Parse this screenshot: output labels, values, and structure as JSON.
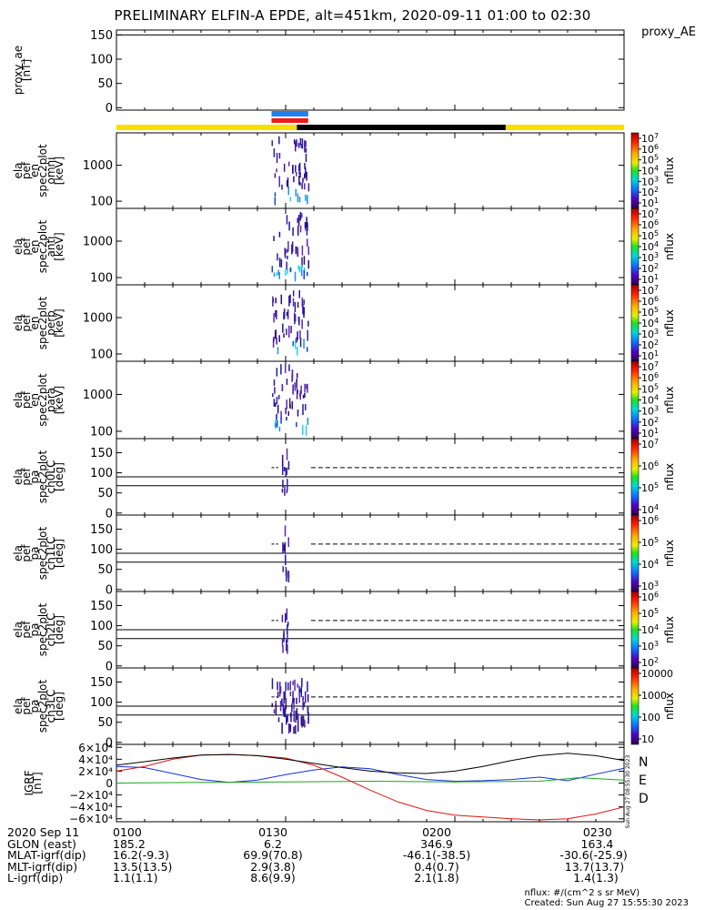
{
  "title": "PRELIMINARY ELFIN-A EPDE, alt=451km, 2020-09-11 01:00 to 02:30",
  "side_label": "proxy_AE",
  "colors": {
    "bar_yellow": "#f5e000",
    "bar_black": "#000000",
    "bar_blue": "#1e7ff0",
    "bar_red": "#ee1a1a",
    "grf_n": "#1530d8",
    "grf_e": "#1ca51c",
    "grf_d": "#e01515",
    "grf_total": "#000000"
  },
  "chart_data": [
    {
      "type": "line",
      "id": "proxy_ae",
      "ylabel": [
        "proxy_ae",
        "[nT]"
      ],
      "yticks": [
        0,
        50,
        100,
        150
      ],
      "ylim": [
        -5,
        160
      ],
      "series": [
        {
          "values": [
            150,
            150
          ]
        }
      ]
    },
    {
      "type": "heatmap",
      "id": "omni",
      "ylabel": [
        "ela",
        "pef",
        "en",
        "spec2plot",
        "omni",
        "[keV]"
      ],
      "yticks": [
        {
          "label": "100",
          "log": 2
        },
        {
          "label": "1000",
          "log": 3
        }
      ],
      "ylim_log": [
        1.8,
        3.9
      ],
      "zlabel": "nflux",
      "zticks": [
        "10^7",
        "10^6",
        "10^5",
        "10^4",
        "10^3",
        "10^2",
        "10^1"
      ]
    },
    {
      "type": "heatmap",
      "id": "anti",
      "ylabel": [
        "ela",
        "pef",
        "en",
        "spec2plot",
        "anti",
        "[keV]"
      ],
      "yticks": [
        {
          "label": "100",
          "log": 2
        },
        {
          "label": "1000",
          "log": 3
        }
      ],
      "ylim_log": [
        1.8,
        3.9
      ],
      "zlabel": "nflux",
      "zticks": [
        "10^7",
        "10^6",
        "10^5",
        "10^4",
        "10^3",
        "10^2",
        "10^1"
      ]
    },
    {
      "type": "heatmap",
      "id": "perp",
      "ylabel": [
        "ela",
        "pef",
        "en",
        "spec2plot",
        "perp",
        "[keV]"
      ],
      "yticks": [
        {
          "label": "100",
          "log": 2
        },
        {
          "label": "1000",
          "log": 3
        }
      ],
      "ylim_log": [
        1.8,
        3.9
      ],
      "zlabel": "nflux",
      "zticks": [
        "10^7",
        "10^6",
        "10^5",
        "10^4",
        "10^3",
        "10^2",
        "10^1"
      ]
    },
    {
      "type": "heatmap",
      "id": "para",
      "ylabel": [
        "ela",
        "pef",
        "en",
        "spec2plot",
        "para",
        "[keV]"
      ],
      "yticks": [
        {
          "label": "100",
          "log": 2
        },
        {
          "label": "1000",
          "log": 3
        }
      ],
      "ylim_log": [
        1.8,
        3.9
      ],
      "zlabel": "nflux",
      "zticks": [
        "10^7",
        "10^6",
        "10^5",
        "10^4",
        "10^3",
        "10^2",
        "10^1"
      ]
    },
    {
      "type": "heatmap",
      "id": "ch0LC",
      "ylabel": [
        "ela",
        "pef",
        "pa",
        "spec2plot",
        "ch0LC",
        "[deg]"
      ],
      "yticks": [
        0,
        50,
        100,
        150
      ],
      "ylim": [
        -5,
        185
      ],
      "hlines": {
        "solid": [
          90,
          68
        ],
        "dashed": 113
      },
      "zlabel": "nflux",
      "zticks": [
        "10^7",
        "10^6",
        "10^5",
        "10^4"
      ]
    },
    {
      "type": "heatmap",
      "id": "ch1LC",
      "ylabel": [
        "ela",
        "pef",
        "pa",
        "spec2plot",
        "ch1LC",
        "[deg]"
      ],
      "yticks": [
        0,
        50,
        100,
        150
      ],
      "ylim": [
        -5,
        185
      ],
      "hlines": {
        "solid": [
          90,
          68
        ],
        "dashed": 113
      },
      "zlabel": "nflux",
      "zticks": [
        "10^6",
        "10^5",
        "10^4",
        "10^3"
      ]
    },
    {
      "type": "heatmap",
      "id": "ch2LC",
      "ylabel": [
        "ela",
        "pef",
        "pa",
        "spec2plot",
        "ch2LC",
        "[deg]"
      ],
      "yticks": [
        0,
        50,
        100,
        150
      ],
      "ylim": [
        -5,
        185
      ],
      "hlines": {
        "solid": [
          90,
          68
        ],
        "dashed": 113
      },
      "zlabel": "nflux",
      "zticks": [
        "10^6",
        "10^5",
        "10^4",
        "10^3",
        "10^2"
      ]
    },
    {
      "type": "heatmap",
      "id": "ch3LC",
      "ylabel": [
        "ela",
        "pef",
        "pa",
        "spec2plot",
        "ch3LC",
        "[deg]"
      ],
      "yticks": [
        0,
        50,
        100,
        150
      ],
      "ylim": [
        -5,
        185
      ],
      "hlines": {
        "solid": [
          90,
          68
        ],
        "dashed": 113
      },
      "zlabel": "nflux",
      "zticks": [
        "10000",
        "1000",
        "100",
        "10"
      ]
    },
    {
      "type": "line",
      "id": "igrf",
      "ylabel": [
        "IGRF",
        "[nT]"
      ],
      "yticks": [
        {
          "label": "6×10⁴",
          "v": 60000
        },
        {
          "label": "4×10⁴",
          "v": 40000
        },
        {
          "label": "2×10⁴",
          "v": 20000
        },
        {
          "label": "0",
          "v": 0
        },
        {
          "label": "−2×10⁴",
          "v": -20000
        },
        {
          "label": "−4×10⁴",
          "v": -40000
        },
        {
          "label": "−6×10⁴",
          "v": -60000
        }
      ],
      "ylim": [
        -65000,
        65000
      ],
      "legend": [
        "N",
        "E",
        "D"
      ],
      "series": [
        {
          "name": "N",
          "color": "grf_n",
          "x": [
            0,
            5,
            10,
            15,
            20,
            25,
            30,
            35,
            40,
            45,
            50,
            55,
            60,
            65,
            70,
            75,
            80,
            85,
            90
          ],
          "values": [
            28000,
            26000,
            16000,
            6000,
            1000,
            5000,
            14000,
            22000,
            27000,
            24000,
            14000,
            6000,
            3000,
            4000,
            6000,
            10000,
            4000,
            15000,
            25000
          ]
        },
        {
          "name": "E",
          "color": "grf_e",
          "x": [
            0,
            15,
            30,
            45,
            60,
            75,
            82,
            90
          ],
          "values": [
            0,
            1000,
            2000,
            3000,
            2000,
            3000,
            9000,
            5000
          ]
        },
        {
          "name": "D",
          "color": "grf_d",
          "x": [
            0,
            5,
            10,
            15,
            20,
            25,
            30,
            35,
            40,
            45,
            50,
            55,
            60,
            65,
            70,
            75,
            80,
            85,
            90
          ],
          "values": [
            20000,
            28000,
            40000,
            47000,
            48000,
            46000,
            42000,
            30000,
            10000,
            -12000,
            -32000,
            -46000,
            -54000,
            -57000,
            -60000,
            -62000,
            -60000,
            -52000,
            -40000
          ]
        },
        {
          "name": "",
          "color": "grf_total",
          "x": [
            0,
            5,
            10,
            15,
            20,
            25,
            30,
            35,
            40,
            45,
            50,
            55,
            60,
            65,
            70,
            75,
            80,
            85,
            90
          ],
          "values": [
            30000,
            36000,
            42000,
            47000,
            48000,
            46000,
            40000,
            33000,
            26000,
            20000,
            17000,
            16000,
            20000,
            28000,
            38000,
            46000,
            50000,
            46000,
            38000
          ]
        }
      ]
    }
  ],
  "xaxis": {
    "tick_labels": [
      "0100",
      "0130",
      "0200",
      "0230"
    ],
    "minutes": [
      0,
      30,
      60,
      90
    ]
  },
  "footer": {
    "row_labels": [
      "2020 Sep 11",
      "GLON (east)",
      "MLAT-igrf(dip)",
      "MLT-igrf(dip)",
      "L-igrf(dip)"
    ],
    "columns": [
      [
        "0100",
        "185.2",
        "16.2(-9.3)",
        "13.5(13.5)",
        "1.1(1.1)"
      ],
      [
        "0130",
        "6.2",
        "69.9(70.8)",
        "2.9(3.8)",
        "8.6(9.9)"
      ],
      [
        "0200",
        "346.9",
        "-46.1(-38.5)",
        "0.4(0.7)",
        "2.1(1.8)"
      ],
      [
        "0230",
        "163.4",
        "-30.6(-25.9)",
        "13.7(13.7)",
        "1.4(1.3)"
      ]
    ],
    "units": "nflux: #/(cm^2 s sr MeV)",
    "created": "Created: Sun Aug 27 15:55:30 2023",
    "stamp": "Sun Aug 27 08:55:30 2023"
  }
}
